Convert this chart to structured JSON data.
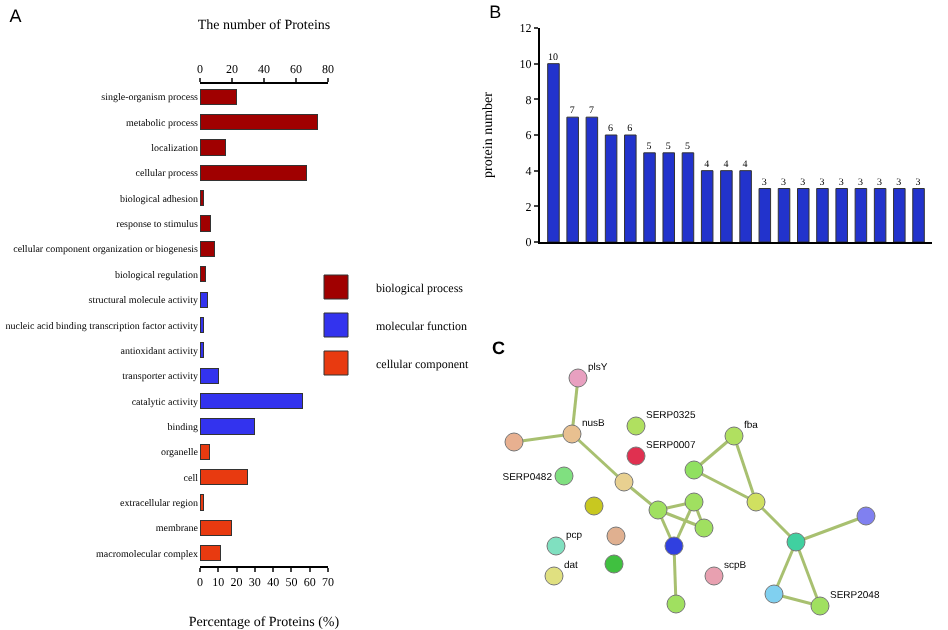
{
  "chart_data": [
    {
      "type": "bar",
      "title": "A",
      "orientation": "horizontal",
      "stacked": true,
      "xlabel": "Percentage of Proteins (%)",
      "x2label": "The number of Proteins",
      "xlim": [
        0,
        70
      ],
      "xticks": [
        0,
        10,
        20,
        30,
        40,
        50,
        60,
        70
      ],
      "x2lim": [
        0,
        80
      ],
      "x2ticks": [
        0,
        20,
        40,
        60,
        80
      ],
      "legend": "right",
      "grid": false,
      "categories": [
        "single-organism process",
        "metabolic process",
        "localization",
        "cellular process",
        "biological adhesion",
        "response to stimulus",
        "cellular component organization or biogenesis",
        "biological regulation",
        "structural molecule activity",
        "nucleic acid binding transcription factor activity",
        "antioxidant activity",
        "transporter activity",
        "catalytic activity",
        "binding",
        "organelle",
        "cell",
        "extracellular region",
        "membrane",
        "macromolecular complex"
      ],
      "series": [
        {
          "name": "biological process",
          "color": "#a00000",
          "values": [
            20,
            64,
            14,
            58,
            2,
            6,
            8,
            3,
            null,
            null,
            null,
            null,
            null,
            null,
            null,
            null,
            null,
            null,
            null
          ]
        },
        {
          "name": "molecular function",
          "color": "#3333ee",
          "values": [
            null,
            null,
            null,
            null,
            null,
            null,
            null,
            null,
            4,
            2,
            2,
            10,
            56,
            30,
            null,
            null,
            null,
            null,
            null
          ]
        },
        {
          "name": "cellular component",
          "color": "#e83a10",
          "values": [
            null,
            null,
            null,
            null,
            null,
            null,
            null,
            null,
            null,
            null,
            null,
            null,
            null,
            null,
            5,
            26,
            2,
            17,
            11
          ]
        }
      ]
    },
    {
      "type": "bar",
      "title": "B",
      "ylabel": "protein number",
      "ylim": [
        0,
        12
      ],
      "yticks": [
        0,
        2,
        4,
        6,
        8,
        10,
        12
      ],
      "tick_labels": "y",
      "data_labels": true,
      "color": "#2233cc",
      "categories": [
        null,
        null,
        null,
        null,
        null,
        null,
        null,
        null,
        null,
        null,
        null,
        null,
        null,
        null,
        null,
        null,
        null,
        null,
        null,
        null
      ],
      "values": [
        10,
        7,
        7,
        6,
        6,
        5,
        5,
        5,
        4,
        4,
        4,
        3,
        3,
        3,
        3,
        3,
        3,
        3,
        3,
        3
      ]
    },
    {
      "type": "other",
      "title": "C",
      "annotations": [
        "plsY",
        "nusB",
        "SERP0325",
        "SERP0007",
        "SERP0482",
        "pcp",
        "dat",
        "scpB",
        "fba",
        "SERP2048"
      ]
    }
  ]
}
